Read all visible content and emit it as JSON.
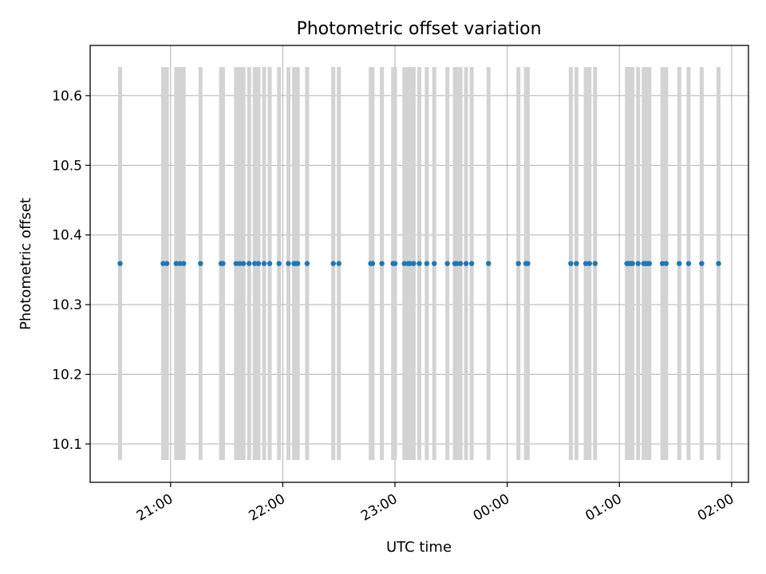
{
  "chart_data": {
    "type": "scatter",
    "title": "Photometric offset variation",
    "xlabel": "UTC time",
    "ylabel": "Photometric offset",
    "x_axis_type": "time",
    "xlim": [
      "20:17",
      "02:09"
    ],
    "ylim": [
      10.045,
      10.672
    ],
    "x_ticks": [
      {
        "value": "21:00",
        "label": "21:00"
      },
      {
        "value": "22:00",
        "label": "22:00"
      },
      {
        "value": "23:00",
        "label": "23:00"
      },
      {
        "value": "00:00",
        "label": "00:00"
      },
      {
        "value": "01:00",
        "label": "01:00"
      },
      {
        "value": "02:00",
        "label": "02:00"
      }
    ],
    "y_ticks": [
      {
        "value": 10.1,
        "label": "10.1"
      },
      {
        "value": 10.2,
        "label": "10.2"
      },
      {
        "value": 10.3,
        "label": "10.3"
      },
      {
        "value": 10.4,
        "label": "10.4"
      },
      {
        "value": 10.5,
        "label": "10.5"
      },
      {
        "value": 10.6,
        "label": "10.6"
      }
    ],
    "grid": true,
    "error_bar_color": "#d3d3d3",
    "point_color": "#1f77b4",
    "series": [
      {
        "y_value": 10.359,
        "error_low": 10.077,
        "error_high": 10.641,
        "x": [
          "20:33",
          "20:56",
          "20:58",
          "21:03",
          "21:05",
          "21:07",
          "21:16",
          "21:27",
          "21:28",
          "21:35",
          "21:37",
          "21:39",
          "21:42",
          "21:45",
          "21:47",
          "21:50",
          "21:53",
          "21:58",
          "22:03",
          "22:06",
          "22:07",
          "22:08",
          "22:13",
          "22:27",
          "22:30",
          "22:47",
          "22:48",
          "22:53",
          "22:59",
          "23:00",
          "23:05",
          "23:07",
          "23:08",
          "23:10",
          "23:13",
          "23:17",
          "23:21",
          "23:28",
          "23:32",
          "23:33",
          "23:35",
          "23:38",
          "23:41",
          "23:50",
          "00:06",
          "00:10",
          "00:11",
          "00:34",
          "00:37",
          "00:42",
          "00:44",
          "00:47",
          "01:04",
          "01:05",
          "01:06",
          "01:07",
          "01:10",
          "01:13",
          "01:14",
          "01:15",
          "01:16",
          "01:23",
          "01:25",
          "01:32",
          "01:37",
          "01:44",
          "01:53"
        ]
      }
    ]
  }
}
